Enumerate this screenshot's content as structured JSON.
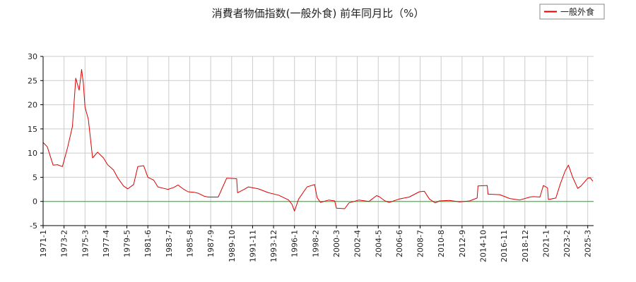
{
  "chart_data": {
    "type": "line",
    "title": "消費者物価指数(一般外食) 前年同月比（%）",
    "xlabel": "",
    "ylabel": "",
    "ylim": [
      -5,
      30
    ],
    "yticks": [
      -5,
      0,
      5,
      10,
      15,
      20,
      25,
      30
    ],
    "x_tick_labels": [
      "1971-1",
      "1973-2",
      "1975-3",
      "1977-4",
      "1979-5",
      "1981-6",
      "1983-7",
      "1985-8",
      "1987-9",
      "1989-10",
      "1991-11",
      "1993-12",
      "1996-1",
      "1998-2",
      "2000-3",
      "2002-4",
      "2004-5",
      "2006-6",
      "2008-7",
      "2010-8",
      "2012-9",
      "2014-10",
      "2016-11",
      "2018-12",
      "2021-1",
      "2023-2",
      "2025-3"
    ],
    "grid": true,
    "legend": {
      "position": "top-right",
      "entries": [
        "一般外食"
      ]
    },
    "colors": {
      "series": "#dd0000",
      "zero_line": "#00cc00",
      "grid": "#cccccc",
      "axis": "#000000"
    },
    "series": [
      {
        "name": "一般外食",
        "points": [
          [
            "1971-01",
            12.2
          ],
          [
            "1971-06",
            11.3
          ],
          [
            "1972-01",
            7.5
          ],
          [
            "1972-06",
            7.6
          ],
          [
            "1972-12",
            7.2
          ],
          [
            "1973-06",
            11.0
          ],
          [
            "1973-12",
            15.5
          ],
          [
            "1974-04",
            25.5
          ],
          [
            "1974-08",
            23.0
          ],
          [
            "1974-11",
            27.3
          ],
          [
            "1975-01",
            24.5
          ],
          [
            "1975-03",
            19.5
          ],
          [
            "1975-07",
            17.0
          ],
          [
            "1975-12",
            9.0
          ],
          [
            "1976-06",
            10.2
          ],
          [
            "1977-01",
            9.0
          ],
          [
            "1977-06",
            7.6
          ],
          [
            "1978-01",
            6.5
          ],
          [
            "1978-06",
            4.9
          ],
          [
            "1979-01",
            3.2
          ],
          [
            "1979-06",
            2.6
          ],
          [
            "1980-01",
            3.5
          ],
          [
            "1980-06",
            7.2
          ],
          [
            "1981-01",
            7.4
          ],
          [
            "1981-06",
            5.0
          ],
          [
            "1982-01",
            4.4
          ],
          [
            "1982-06",
            3.0
          ],
          [
            "1983-01",
            2.7
          ],
          [
            "1983-06",
            2.5
          ],
          [
            "1984-01",
            2.9
          ],
          [
            "1984-06",
            3.4
          ],
          [
            "1985-01",
            2.5
          ],
          [
            "1985-06",
            2.0
          ],
          [
            "1986-01",
            1.9
          ],
          [
            "1986-06",
            1.7
          ],
          [
            "1987-01",
            1.1
          ],
          [
            "1987-06",
            0.9
          ],
          [
            "1988-06",
            0.9
          ],
          [
            "1989-04",
            4.8
          ],
          [
            "1990-04",
            4.7
          ],
          [
            "1990-05",
            1.8
          ],
          [
            "1991-01",
            2.5
          ],
          [
            "1991-06",
            3.0
          ],
          [
            "1992-06",
            2.6
          ],
          [
            "1993-06",
            1.8
          ],
          [
            "1994-06",
            1.3
          ],
          [
            "1995-06",
            0.3
          ],
          [
            "1995-10",
            -0.6
          ],
          [
            "1996-01",
            -2.0
          ],
          [
            "1996-06",
            0.5
          ],
          [
            "1997-04",
            3.0
          ],
          [
            "1998-01",
            3.5
          ],
          [
            "1998-04",
            0.8
          ],
          [
            "1998-08",
            -0.2
          ],
          [
            "1999-06",
            0.3
          ],
          [
            "2000-01",
            0.1
          ],
          [
            "2000-03",
            -1.4
          ],
          [
            "2001-01",
            -1.5
          ],
          [
            "2001-06",
            -0.3
          ],
          [
            "2002-06",
            0.3
          ],
          [
            "2003-06",
            0.0
          ],
          [
            "2004-03",
            1.2
          ],
          [
            "2004-06",
            1.0
          ],
          [
            "2005-01",
            0.1
          ],
          [
            "2005-06",
            -0.2
          ],
          [
            "2006-06",
            0.5
          ],
          [
            "2007-06",
            0.9
          ],
          [
            "2008-06",
            2.0
          ],
          [
            "2008-12",
            2.1
          ],
          [
            "2009-06",
            0.5
          ],
          [
            "2010-01",
            -0.3
          ],
          [
            "2010-06",
            0.1
          ],
          [
            "2011-06",
            0.2
          ],
          [
            "2012-06",
            -0.1
          ],
          [
            "2013-06",
            0.1
          ],
          [
            "2014-03",
            0.7
          ],
          [
            "2014-04",
            3.2
          ],
          [
            "2015-03",
            3.3
          ],
          [
            "2015-04",
            1.5
          ],
          [
            "2016-06",
            1.4
          ],
          [
            "2017-06",
            0.6
          ],
          [
            "2018-06",
            0.3
          ],
          [
            "2019-06",
            0.9
          ],
          [
            "2019-10",
            1.0
          ],
          [
            "2020-06",
            0.9
          ],
          [
            "2020-10",
            3.3
          ],
          [
            "2021-03",
            2.8
          ],
          [
            "2021-04",
            0.4
          ],
          [
            "2022-01",
            0.7
          ],
          [
            "2022-06",
            3.5
          ],
          [
            "2022-12",
            6.3
          ],
          [
            "2023-04",
            7.5
          ],
          [
            "2023-09",
            5.0
          ],
          [
            "2024-03",
            2.7
          ],
          [
            "2024-07",
            3.2
          ],
          [
            "2025-03",
            4.8
          ],
          [
            "2025-06",
            4.9
          ],
          [
            "2025-09",
            4.2
          ]
        ]
      }
    ]
  }
}
